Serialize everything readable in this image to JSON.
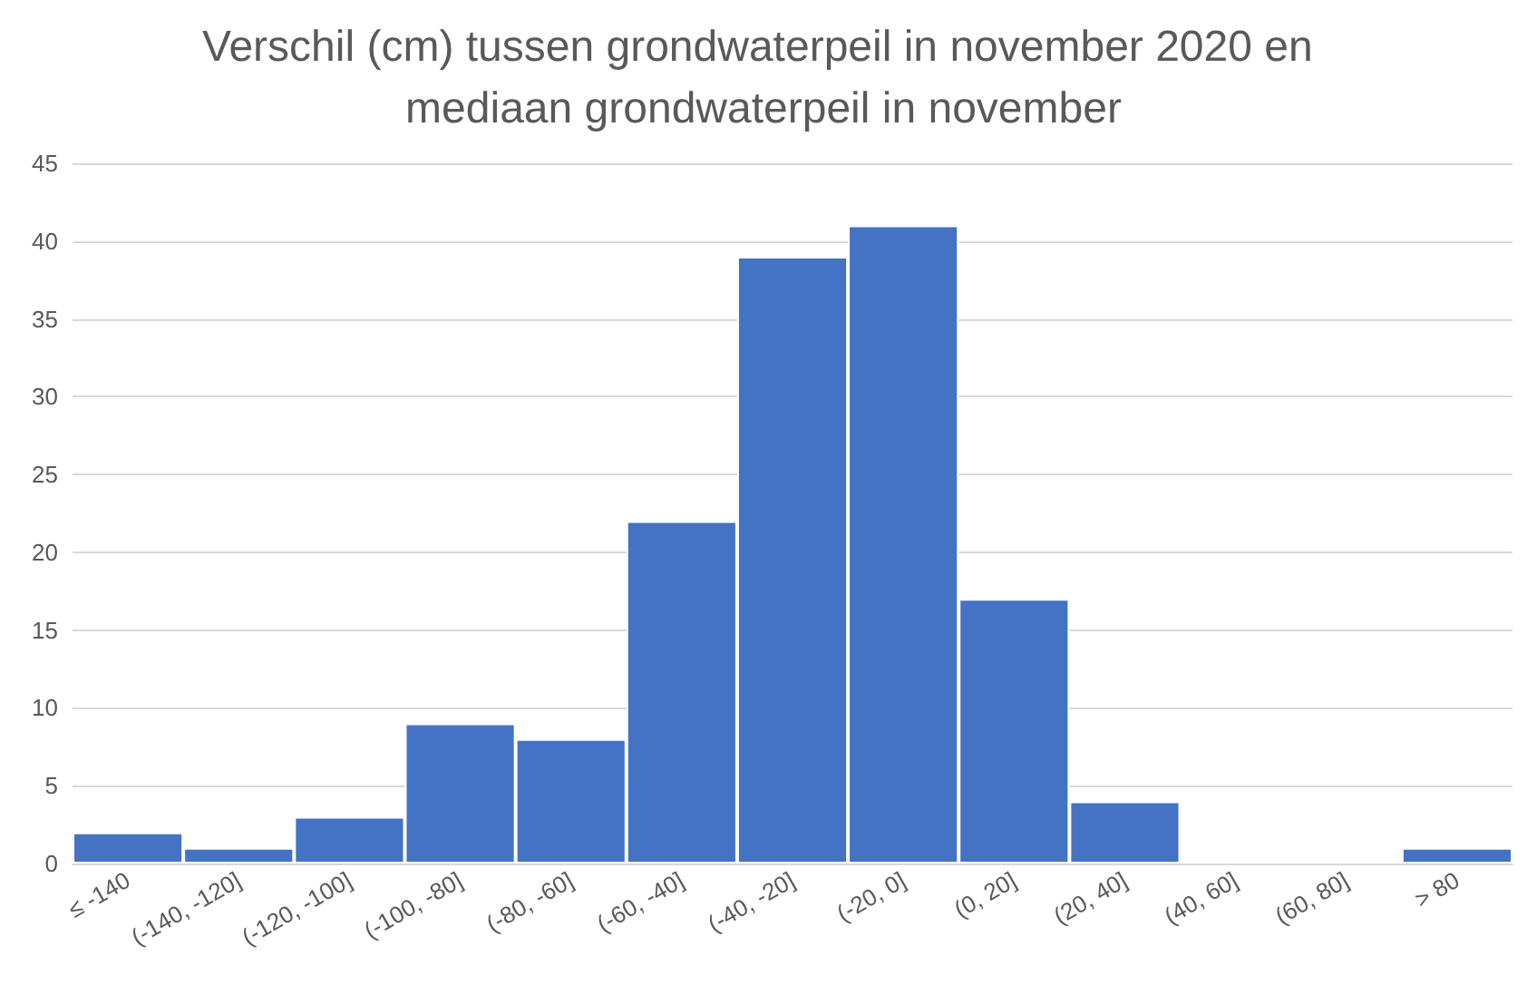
{
  "chart_data": {
    "type": "bar",
    "title": "Verschil (cm) tussen grondwaterpeil in november 2020 en mediaan grondwaterpeil in november",
    "categories": [
      "≤ -140",
      "(-140, -120]",
      "(-120, -100]",
      "(-100, -80]",
      "(-80, -60]",
      "(-60, -40]",
      "(-40, -20]",
      "(-20, 0]",
      "(0, 20]",
      "(20, 40]",
      "(40, 60]",
      "(60, 80]",
      "> 80"
    ],
    "values": [
      2,
      1,
      3,
      9,
      8,
      22,
      39,
      41,
      17,
      4,
      0,
      0,
      1
    ],
    "color": "#4472c4",
    "ylim": [
      0,
      45
    ],
    "yticks": [
      0,
      5,
      10,
      15,
      20,
      25,
      30,
      35,
      40,
      45
    ],
    "grid": "y"
  }
}
